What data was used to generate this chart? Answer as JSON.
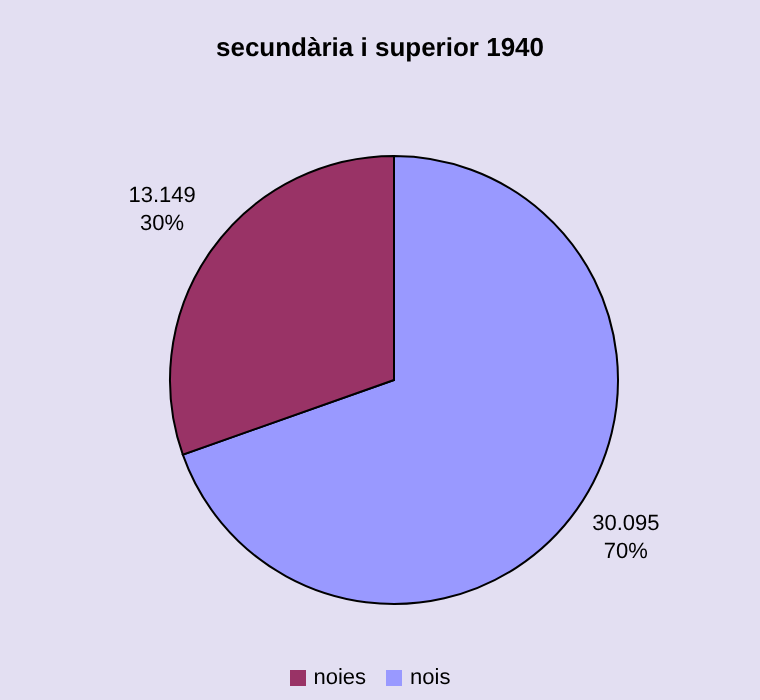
{
  "chart_data": {
    "type": "pie",
    "title": "secundària i superior 1940",
    "categories": [
      "nois",
      "noies"
    ],
    "values": [
      30095,
      13149
    ],
    "colors": [
      "#9999ff",
      "#993366"
    ],
    "value_labels": [
      "30.095\n70%",
      "13.149\n30%"
    ],
    "legend": "bottom"
  }
}
